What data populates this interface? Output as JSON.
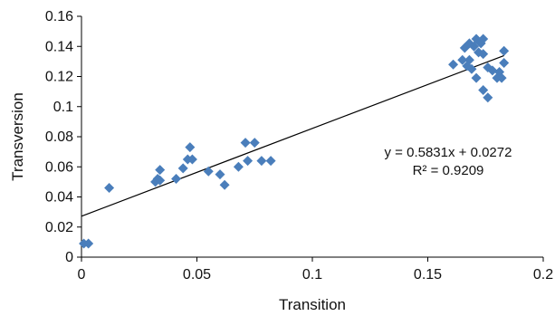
{
  "chart_data": {
    "type": "scatter",
    "title": "",
    "xlabel": "Transition",
    "ylabel": "Transversion",
    "xlim": [
      0,
      0.2
    ],
    "ylim": [
      0,
      0.16
    ],
    "x_ticks": [
      "0",
      "0.05",
      "0.1",
      "0.15",
      "0.2"
    ],
    "y_ticks": [
      "0",
      "0.02",
      "0.04",
      "0.06",
      "0.08",
      "0.1",
      "0.12",
      "0.14",
      "0.16"
    ],
    "grid": false,
    "legend": "none",
    "marker": "diamond",
    "marker_color": "#4a7ebb",
    "series": [
      {
        "points": [
          [
            0.001,
            0.009
          ],
          [
            0.003,
            0.009
          ],
          [
            0.012,
            0.046
          ],
          [
            0.032,
            0.05
          ],
          [
            0.033,
            0.052
          ],
          [
            0.034,
            0.058
          ],
          [
            0.034,
            0.051
          ],
          [
            0.041,
            0.052
          ],
          [
            0.044,
            0.059
          ],
          [
            0.046,
            0.065
          ],
          [
            0.047,
            0.073
          ],
          [
            0.048,
            0.065
          ],
          [
            0.055,
            0.057
          ],
          [
            0.06,
            0.055
          ],
          [
            0.062,
            0.048
          ],
          [
            0.068,
            0.06
          ],
          [
            0.071,
            0.076
          ],
          [
            0.072,
            0.064
          ],
          [
            0.075,
            0.076
          ],
          [
            0.078,
            0.064
          ],
          [
            0.082,
            0.064
          ],
          [
            0.161,
            0.128
          ],
          [
            0.165,
            0.131
          ],
          [
            0.166,
            0.139
          ],
          [
            0.167,
            0.127
          ],
          [
            0.168,
            0.142
          ],
          [
            0.168,
            0.131
          ],
          [
            0.169,
            0.125
          ],
          [
            0.17,
            0.14
          ],
          [
            0.171,
            0.145
          ],
          [
            0.171,
            0.119
          ],
          [
            0.172,
            0.136
          ],
          [
            0.173,
            0.142
          ],
          [
            0.174,
            0.145
          ],
          [
            0.174,
            0.135
          ],
          [
            0.174,
            0.111
          ],
          [
            0.176,
            0.126
          ],
          [
            0.176,
            0.106
          ],
          [
            0.178,
            0.124
          ],
          [
            0.18,
            0.119
          ],
          [
            0.181,
            0.123
          ],
          [
            0.182,
            0.119
          ],
          [
            0.183,
            0.129
          ],
          [
            0.183,
            0.137
          ]
        ]
      }
    ],
    "trendline": {
      "slope": 0.5831,
      "intercept": 0.0272,
      "x_range": [
        0,
        0.183
      ],
      "color": "#000000",
      "equation": "y = 0.5831x + 0.0272",
      "r_squared": "R² = 0.9209"
    }
  }
}
